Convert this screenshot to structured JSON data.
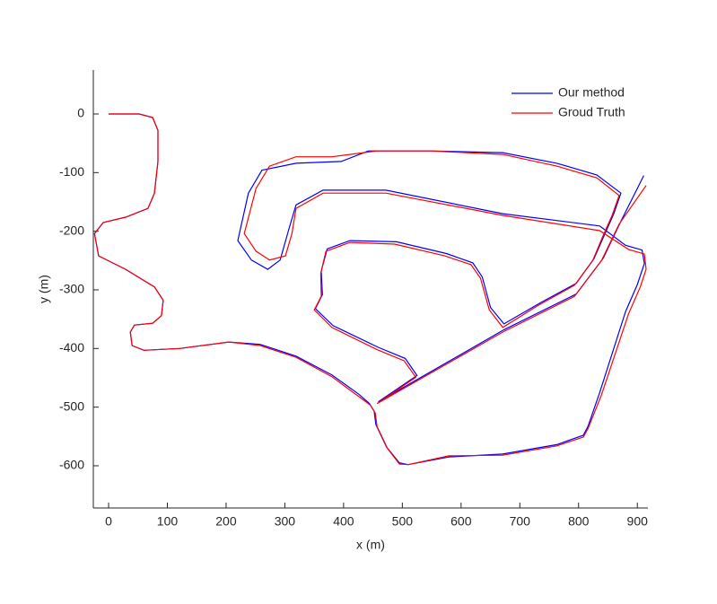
{
  "chart_data": {
    "type": "line",
    "xlabel": "x (m)",
    "ylabel": "y (m)",
    "xlim": [
      -26,
      918
    ],
    "ylim": [
      -672,
      75
    ],
    "xticks": [
      0,
      100,
      200,
      300,
      400,
      500,
      600,
      700,
      800,
      900
    ],
    "yticks": [
      0,
      -100,
      -200,
      -300,
      -400,
      -500,
      -600
    ],
    "grid": false,
    "legend": "northeast",
    "series": [
      {
        "name": "Our method",
        "color": "#0000ff",
        "x": [
          0,
          52,
          75,
          84,
          84,
          78,
          67,
          29,
          -9,
          -24,
          -17,
          29,
          78,
          93,
          90,
          75,
          44,
          37,
          40,
          60,
          121,
          205,
          258,
          319,
          380,
          426,
          444,
          452,
          455,
          473,
          495,
          510,
          579,
          671,
          763,
          808,
          816,
          836,
          880,
          900,
          912,
          908,
          880,
          836,
          671,
          472,
          365,
          319,
          307,
          292,
          271,
          243,
          220,
          238,
          261,
          319,
          396,
          442,
          549,
          671,
          763,
          831,
          872,
          860,
          845,
          826,
          796,
          735,
          673,
          650,
          636,
          620,
          575,
          490,
          411,
          372,
          362,
          364,
          352,
          382,
          459,
          505,
          525,
          459,
          673,
          796,
          842,
          872,
          911
        ],
        "values": [
          0,
          0,
          -6,
          -28,
          -81,
          -135,
          -161,
          -176,
          -185,
          -204,
          -242,
          -265,
          -295,
          -318,
          -344,
          -357,
          -360,
          -372,
          -395,
          -403,
          -400,
          -389,
          -393,
          -413,
          -445,
          -478,
          -494,
          -507,
          -530,
          -568,
          -595,
          -598,
          -585,
          -580,
          -564,
          -548,
          -533,
          -475,
          -337,
          -291,
          -255,
          -232,
          -224,
          -191,
          -170,
          -130,
          -130,
          -155,
          -196,
          -249,
          -265,
          -249,
          -216,
          -135,
          -96,
          -84,
          -81,
          -63,
          -63,
          -66,
          -84,
          -104,
          -135,
          -170,
          -204,
          -247,
          -289,
          -322,
          -358,
          -330,
          -278,
          -254,
          -238,
          -218,
          -216,
          -230,
          -268,
          -308,
          -332,
          -361,
          -398,
          -417,
          -446,
          -491,
          -368,
          -307,
          -246,
          -183,
          -105
        ]
      },
      {
        "name": "Groud Truth",
        "color": "#ff0000",
        "x": [
          0,
          52,
          75,
          84,
          84,
          78,
          67,
          29,
          -9,
          -24,
          -17,
          29,
          78,
          93,
          90,
          75,
          44,
          37,
          40,
          60,
          121,
          205,
          258,
          319,
          380,
          426,
          446,
          454,
          457,
          475,
          495,
          510,
          579,
          671,
          763,
          808,
          816,
          839,
          885,
          905,
          915,
          912,
          885,
          836,
          671,
          472,
          365,
          319,
          312,
          301,
          274,
          251,
          231,
          251,
          274,
          319,
          380,
          457,
          549,
          671,
          763,
          831,
          869,
          857,
          842,
          824,
          793,
          732,
          671,
          648,
          633,
          617,
          572,
          487,
          411,
          370,
          361,
          362,
          350,
          380,
          457,
          503,
          523,
          457,
          671,
          793,
          839,
          869,
          915
        ],
        "values": [
          0,
          0,
          -6,
          -28,
          -81,
          -135,
          -161,
          -176,
          -185,
          -204,
          -242,
          -265,
          -295,
          -318,
          -344,
          -357,
          -360,
          -372,
          -395,
          -403,
          -400,
          -389,
          -395,
          -415,
          -448,
          -482,
          -497,
          -510,
          -533,
          -571,
          -597,
          -598,
          -583,
          -582,
          -566,
          -551,
          -537,
          -479,
          -341,
          -295,
          -265,
          -239,
          -231,
          -199,
          -173,
          -135,
          -135,
          -161,
          -204,
          -242,
          -249,
          -234,
          -204,
          -127,
          -89,
          -73,
          -73,
          -63,
          -63,
          -69,
          -89,
          -109,
          -139,
          -173,
          -207,
          -250,
          -292,
          -326,
          -364,
          -334,
          -280,
          -257,
          -242,
          -222,
          -219,
          -234,
          -272,
          -311,
          -334,
          -364,
          -402,
          -421,
          -449,
          -494,
          -372,
          -311,
          -250,
          -188,
          -122
        ]
      }
    ]
  }
}
